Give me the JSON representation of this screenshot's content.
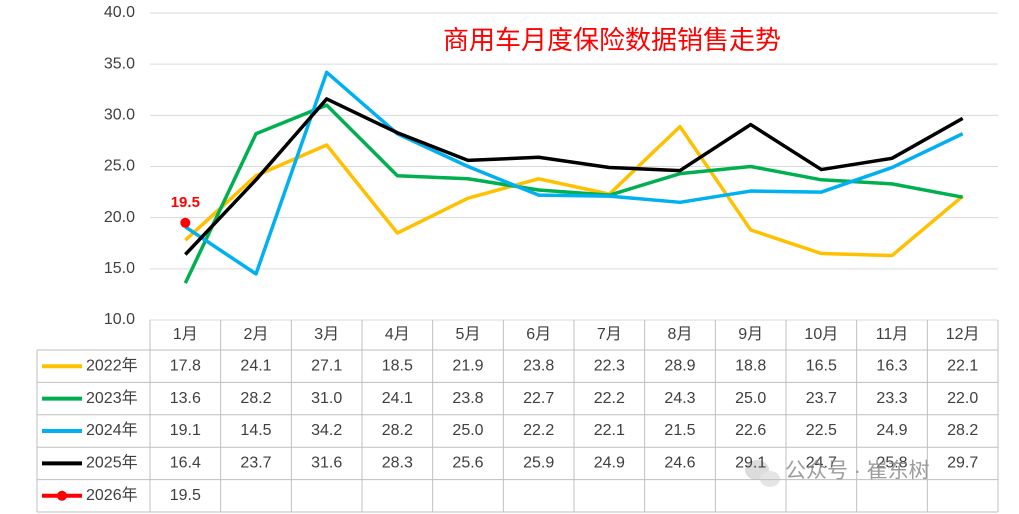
{
  "chart_data": {
    "type": "line",
    "title": "商用车月度保险数据销售走势",
    "categories": [
      "1月",
      "2月",
      "3月",
      "4月",
      "5月",
      "6月",
      "7月",
      "8月",
      "9月",
      "10月",
      "11月",
      "12月"
    ],
    "ylim": [
      10,
      40
    ],
    "yticks": [
      {
        "value": 10,
        "label": "10.0"
      },
      {
        "value": 15,
        "label": "15.0"
      },
      {
        "value": 20,
        "label": "20.0"
      },
      {
        "value": 25,
        "label": "25.0"
      },
      {
        "value": 30,
        "label": "30.0"
      },
      {
        "value": 35,
        "label": "35.0"
      },
      {
        "value": 40,
        "label": "40.0"
      }
    ],
    "grid": true,
    "series": [
      {
        "name": "2022年",
        "color": "#ffc000",
        "values": [
          17.8,
          24.1,
          27.1,
          18.5,
          21.9,
          23.8,
          22.3,
          28.9,
          18.8,
          16.5,
          16.3,
          22.1
        ],
        "value_labels": [
          "17.8",
          "24.1",
          "27.1",
          "18.5",
          "21.9",
          "23.8",
          "22.3",
          "28.9",
          "18.8",
          "16.5",
          "16.3",
          "22.1"
        ]
      },
      {
        "name": "2023年",
        "color": "#00b050",
        "values": [
          13.6,
          28.2,
          31,
          24.1,
          23.8,
          22.7,
          22.2,
          24.3,
          25,
          23.7,
          23.3,
          22
        ],
        "value_labels": [
          "13.6",
          "28.2",
          "31.0",
          "24.1",
          "23.8",
          "22.7",
          "22.2",
          "24.3",
          "25.0",
          "23.7",
          "23.3",
          "22.0"
        ]
      },
      {
        "name": "2024年",
        "color": "#00b0f0",
        "values": [
          19.1,
          14.5,
          34.2,
          28.2,
          25,
          22.2,
          22.1,
          21.5,
          22.6,
          22.5,
          24.9,
          28.2
        ],
        "value_labels": [
          "19.1",
          "14.5",
          "34.2",
          "28.2",
          "25.0",
          "22.2",
          "22.1",
          "21.5",
          "22.6",
          "22.5",
          "24.9",
          "28.2"
        ]
      },
      {
        "name": "2025年",
        "color": "#000000",
        "values": [
          16.4,
          23.7,
          31.6,
          28.3,
          25.6,
          25.9,
          24.9,
          24.6,
          29.1,
          24.7,
          25.8,
          29.7
        ],
        "value_labels": [
          "16.4",
          "23.7",
          "31.6",
          "28.3",
          "25.6",
          "25.9",
          "24.9",
          "24.6",
          "29.1",
          "24.7",
          "25.8",
          "29.7"
        ]
      },
      {
        "name": "2026年",
        "color": "#ff0000",
        "marker": true,
        "data_label_color": "#ff0000",
        "values": [
          19.5,
          null,
          null,
          null,
          null,
          null,
          null,
          null,
          null,
          null,
          null,
          null
        ],
        "value_labels": [
          "19.5",
          null,
          null,
          null,
          null,
          null,
          null,
          null,
          null,
          null,
          null,
          null
        ]
      }
    ],
    "watermark": "公众号 · 崔东树"
  }
}
